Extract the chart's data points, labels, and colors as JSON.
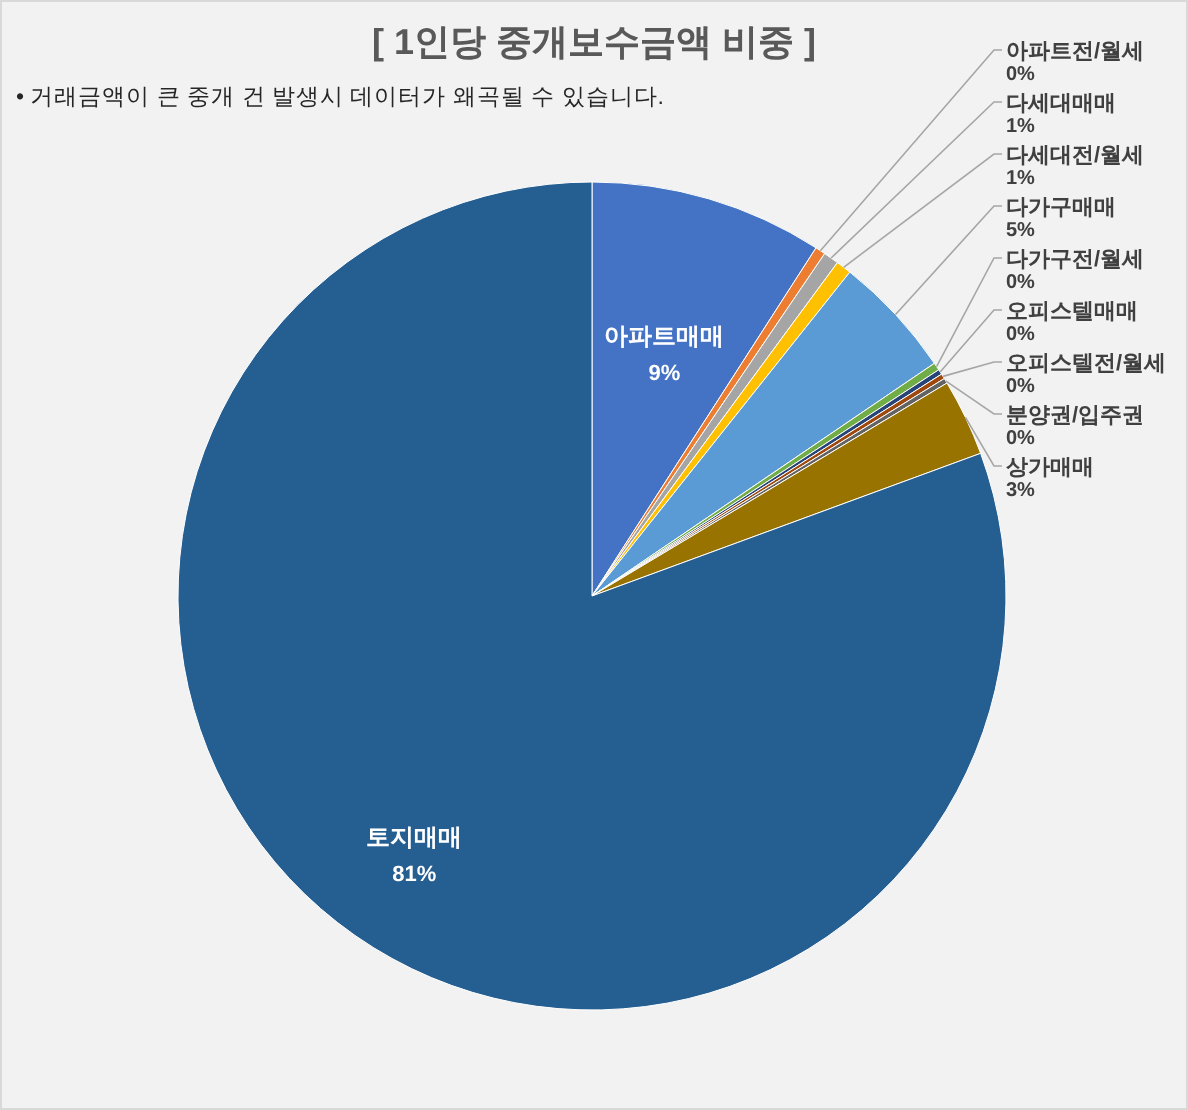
{
  "chart_data": {
    "type": "pie",
    "title": "[ 1인당 중개보수금액 비중 ]",
    "annotations": [
      "• 거래금액이 큰 중개 건 발생시 데이터가 왜곡될 수 있습니다."
    ],
    "categories": [
      "아파트매매",
      "아파트전/월세",
      "다세대매매",
      "다세대전/월세",
      "다가구매매",
      "다가구전/월세",
      "오피스텔매매",
      "오피스텔전/월세",
      "분양권/입주권",
      "상가매매",
      "토지매매"
    ],
    "values": [
      9.1,
      0.4,
      0.6,
      0.6,
      4.8,
      0.3,
      0.2,
      0.2,
      0.2,
      3.0,
      80.6
    ],
    "value_labels": [
      "9%",
      "0%",
      "1%",
      "1%",
      "5%",
      "0%",
      "0%",
      "0%",
      "0%",
      "3%",
      "81%"
    ],
    "colors": [
      "#4472c4",
      "#ed7d31",
      "#a5a5a5",
      "#ffc000",
      "#5b9bd5",
      "#70ad47",
      "#264478",
      "#9e480e",
      "#636363",
      "#997300",
      "#255e91"
    ]
  }
}
